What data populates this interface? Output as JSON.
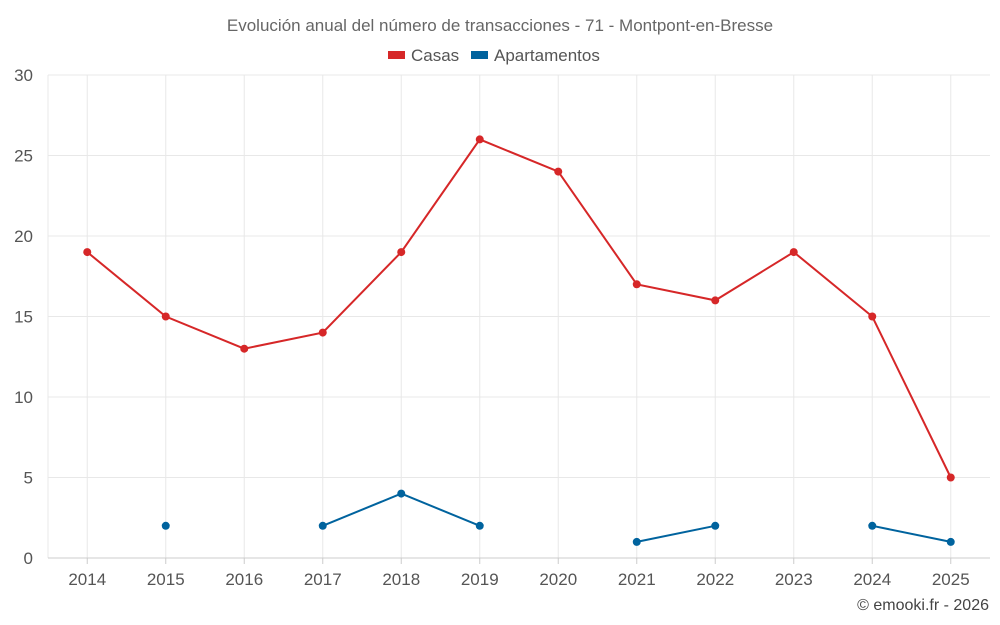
{
  "chart_data": {
    "type": "line",
    "title": "Evolución anual del número de transacciones - 71 - Montpont-en-Bresse",
    "xlabel": "",
    "ylabel": "",
    "categories": [
      "2014",
      "2015",
      "2016",
      "2017",
      "2018",
      "2019",
      "2020",
      "2021",
      "2022",
      "2023",
      "2024",
      "2025"
    ],
    "ylim": [
      0,
      30
    ],
    "yticks": [
      0,
      5,
      10,
      15,
      20,
      25,
      30
    ],
    "grid": true,
    "legend_position": "top-center",
    "series": [
      {
        "name": "Casas",
        "color": "#d62728",
        "values": [
          19,
          15,
          13,
          14,
          19,
          26,
          24,
          17,
          16,
          19,
          15,
          5
        ]
      },
      {
        "name": "Apartamentos",
        "color": "#00639e",
        "values": [
          null,
          2,
          null,
          2,
          4,
          2,
          null,
          1,
          2,
          null,
          2,
          1
        ]
      }
    ]
  },
  "credit": "© emooki.fr - 2026"
}
